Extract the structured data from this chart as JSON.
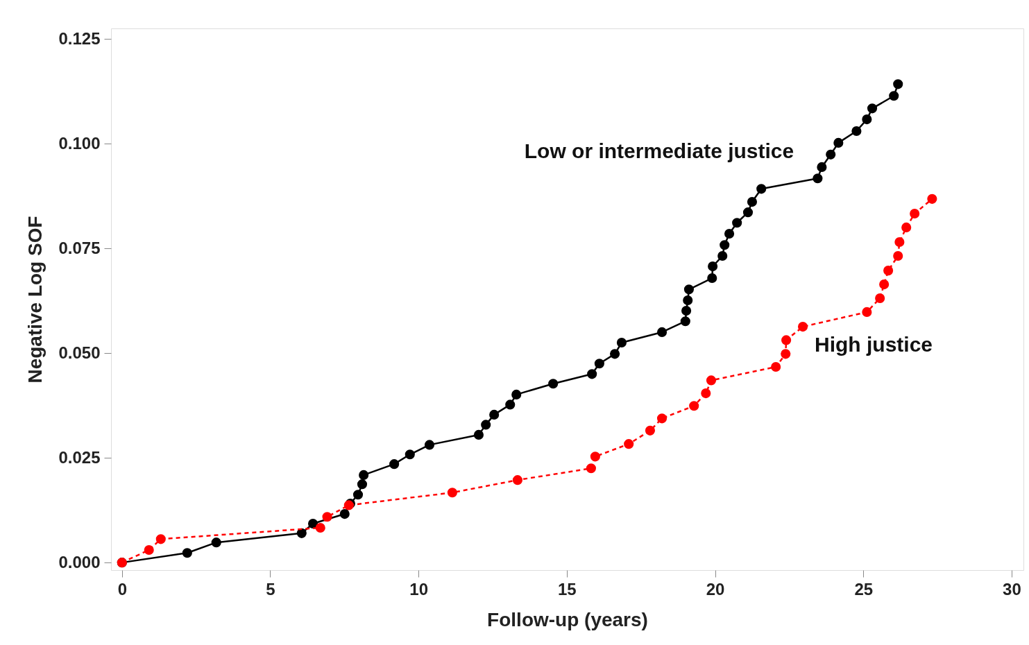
{
  "chart_data": {
    "type": "line",
    "xlabel": "Follow-up (years)",
    "ylabel": "Negative Log SOF",
    "xlim": [
      -0.37,
      30.4
    ],
    "ylim": [
      -0.0018,
      0.1275
    ],
    "xticks": [
      0,
      5,
      10,
      15,
      20,
      25,
      30
    ],
    "yticks": [
      {
        "value": 0,
        "label": "0.000"
      },
      {
        "value": 0.025,
        "label": "0.025"
      },
      {
        "value": 0.05,
        "label": "0.050"
      },
      {
        "value": 0.075,
        "label": "0.075"
      },
      {
        "value": 0.1,
        "label": "0.100"
      },
      {
        "value": 0.125,
        "label": "0.125"
      }
    ],
    "grid": false,
    "legend": false,
    "marker": "circle",
    "series": [
      {
        "name": "Low or intermediate justice",
        "color": "#000000",
        "line_style": "solid",
        "x": [
          0,
          2.2,
          3.18,
          6.06,
          6.44,
          7.51,
          7.7,
          7.96,
          8.1,
          8.15,
          9.18,
          9.71,
          10.37,
          12.03,
          12.27,
          12.55,
          13.09,
          13.3,
          14.54,
          15.85,
          16.1,
          16.62,
          16.85,
          18.21,
          19.0,
          19.03,
          19.08,
          19.12,
          19.9,
          19.92,
          20.25,
          20.32,
          20.48,
          20.74,
          21.11,
          21.25,
          21.56,
          23.46,
          23.6,
          23.9,
          24.16,
          24.77,
          25.12,
          25.3,
          26.03,
          26.17
        ],
        "values": [
          0,
          0.0023,
          0.0048,
          0.007,
          0.0093,
          0.0116,
          0.0141,
          0.0162,
          0.0187,
          0.0209,
          0.0235,
          0.0258,
          0.0281,
          0.0305,
          0.0329,
          0.0353,
          0.0377,
          0.0401,
          0.0427,
          0.045,
          0.0475,
          0.0498,
          0.0525,
          0.055,
          0.0576,
          0.0601,
          0.0626,
          0.0652,
          0.0679,
          0.0707,
          0.0732,
          0.0758,
          0.0785,
          0.0811,
          0.0836,
          0.0861,
          0.0892,
          0.0917,
          0.0944,
          0.0974,
          0.1002,
          0.103,
          0.1058,
          0.1084,
          0.1114,
          0.1142
        ]
      },
      {
        "name": "High justice",
        "color": "#ff0000",
        "line_style": "dashed",
        "x": [
          0,
          0.91,
          1.31,
          6.69,
          6.92,
          7.65,
          11.14,
          13.34,
          15.82,
          15.96,
          17.09,
          17.81,
          18.21,
          19.29,
          19.69,
          19.87,
          22.05,
          22.38,
          22.4,
          22.96,
          25.12,
          25.56,
          25.7,
          25.84,
          26.17,
          26.22,
          26.45,
          26.73,
          27.32
        ],
        "values": [
          0,
          0.003,
          0.0056,
          0.0083,
          0.0109,
          0.0137,
          0.0167,
          0.0197,
          0.0225,
          0.0253,
          0.0283,
          0.0315,
          0.0344,
          0.0374,
          0.0404,
          0.0435,
          0.0467,
          0.0498,
          0.0531,
          0.0563,
          0.0598,
          0.0631,
          0.0664,
          0.0697,
          0.0732,
          0.0765,
          0.08,
          0.0833,
          0.0868
        ]
      }
    ]
  }
}
